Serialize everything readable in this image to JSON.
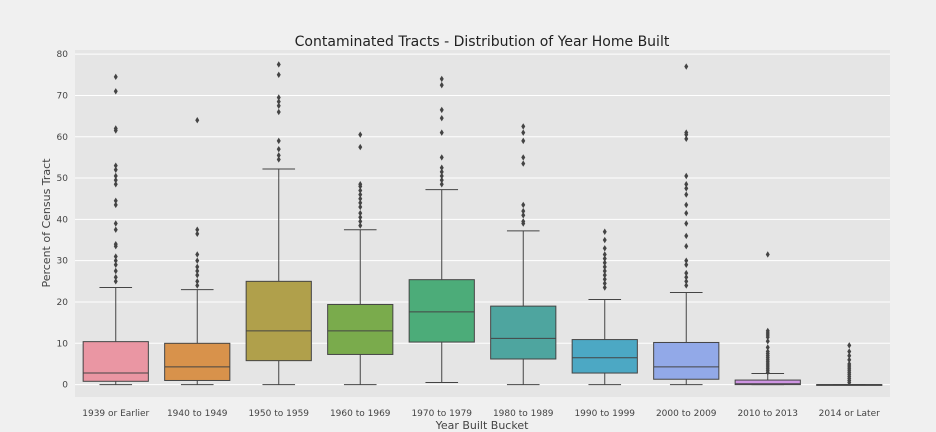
{
  "chart_data": {
    "type": "box",
    "title": "Contaminated Tracts - Distribution of Year Home Built",
    "xlabel": "Year Built Bucket",
    "ylabel": "Percent of Census Tract",
    "ylim": [
      -3,
      81
    ],
    "yticks": [
      0,
      10,
      20,
      30,
      40,
      50,
      60,
      70,
      80
    ],
    "grid": true,
    "categories": [
      "1939 or Earlier",
      "1940 to 1949",
      "1950 to 1959",
      "1960 to 1969",
      "1970 to 1979",
      "1980 to 1989",
      "1990 to 1999",
      "2000 to 2009",
      "2010 to 2013",
      "2014 or Later"
    ],
    "boxes": [
      {
        "color": "#ea96a3",
        "whislo": 0,
        "q1": 0.8,
        "median": 2.8,
        "q3": 10.4,
        "whishi": 23.5,
        "fliers": [
          25,
          26,
          27.5,
          29,
          30,
          31,
          33.5,
          34,
          37.5,
          39,
          43.5,
          44.5,
          48.5,
          49.5,
          50.5,
          52,
          53,
          61.5,
          62,
          71,
          74.5
        ]
      },
      {
        "color": "#d8924b",
        "whislo": 0,
        "q1": 1.0,
        "median": 4.3,
        "q3": 10.0,
        "whishi": 23,
        "fliers": [
          24,
          25,
          26.5,
          27.5,
          28.5,
          30,
          31.5,
          36.5,
          37.5,
          64
        ]
      },
      {
        "color": "#b0a04b",
        "whislo": 0,
        "q1": 5.8,
        "median": 13.0,
        "q3": 25.0,
        "whishi": 52.2,
        "fliers": [
          54.5,
          55.5,
          57,
          59,
          66,
          67.5,
          68.5,
          69.5,
          75,
          77.5
        ]
      },
      {
        "color": "#7aab4c",
        "whislo": 0,
        "q1": 7.3,
        "median": 13.0,
        "q3": 19.4,
        "whishi": 37.5,
        "fliers": [
          38.5,
          39.5,
          40.5,
          41.5,
          43,
          44,
          45,
          46,
          47,
          48,
          48.5,
          57.5,
          60.5
        ]
      },
      {
        "color": "#4cac79",
        "whislo": 0.5,
        "q1": 10.3,
        "median": 17.6,
        "q3": 25.4,
        "whishi": 47.2,
        "fliers": [
          48.5,
          49.5,
          50.5,
          51.5,
          52.5,
          55,
          61,
          64.5,
          66.5,
          72.5,
          74
        ]
      },
      {
        "color": "#4ea59f",
        "whislo": 0,
        "q1": 6.2,
        "median": 11.2,
        "q3": 19.0,
        "whishi": 37.2,
        "fliers": [
          39,
          39.5,
          41,
          42,
          43.5,
          53.5,
          55,
          59,
          61,
          62.5
        ]
      },
      {
        "color": "#4ca8c4",
        "whislo": 0,
        "q1": 2.8,
        "median": 6.5,
        "q3": 10.9,
        "whishi": 20.6,
        "fliers": [
          23.5,
          24.5,
          25.5,
          26.5,
          27.5,
          28.5,
          29.5,
          30.5,
          31.5,
          33,
          35,
          37
        ]
      },
      {
        "color": "#92a9e8",
        "whislo": 0,
        "q1": 1.3,
        "median": 4.3,
        "q3": 10.2,
        "whishi": 22.3,
        "fliers": [
          24,
          25,
          26,
          27,
          29,
          30,
          33.5,
          36,
          39,
          41.5,
          43.5,
          46,
          47.5,
          48.5,
          50.5,
          59.5,
          60.5,
          61,
          77
        ]
      },
      {
        "color": "#cf95e3",
        "whislo": 0,
        "q1": 0,
        "median": 0.2,
        "q3": 1.1,
        "whishi": 2.7,
        "fliers": [
          3,
          3.5,
          4,
          4.5,
          5,
          5.5,
          6,
          6.5,
          7,
          7.5,
          8,
          9,
          10.5,
          11.5,
          12,
          12.5,
          13,
          31.5
        ]
      },
      {
        "color": "#e38fc5",
        "whislo": 0,
        "q1": 0,
        "median": 0,
        "q3": 0,
        "whishi": 0,
        "fliers": [
          0.5,
          1,
          1.5,
          2,
          2.5,
          3,
          3.5,
          4,
          4.5,
          5,
          6,
          7,
          8,
          9.5
        ]
      }
    ]
  }
}
